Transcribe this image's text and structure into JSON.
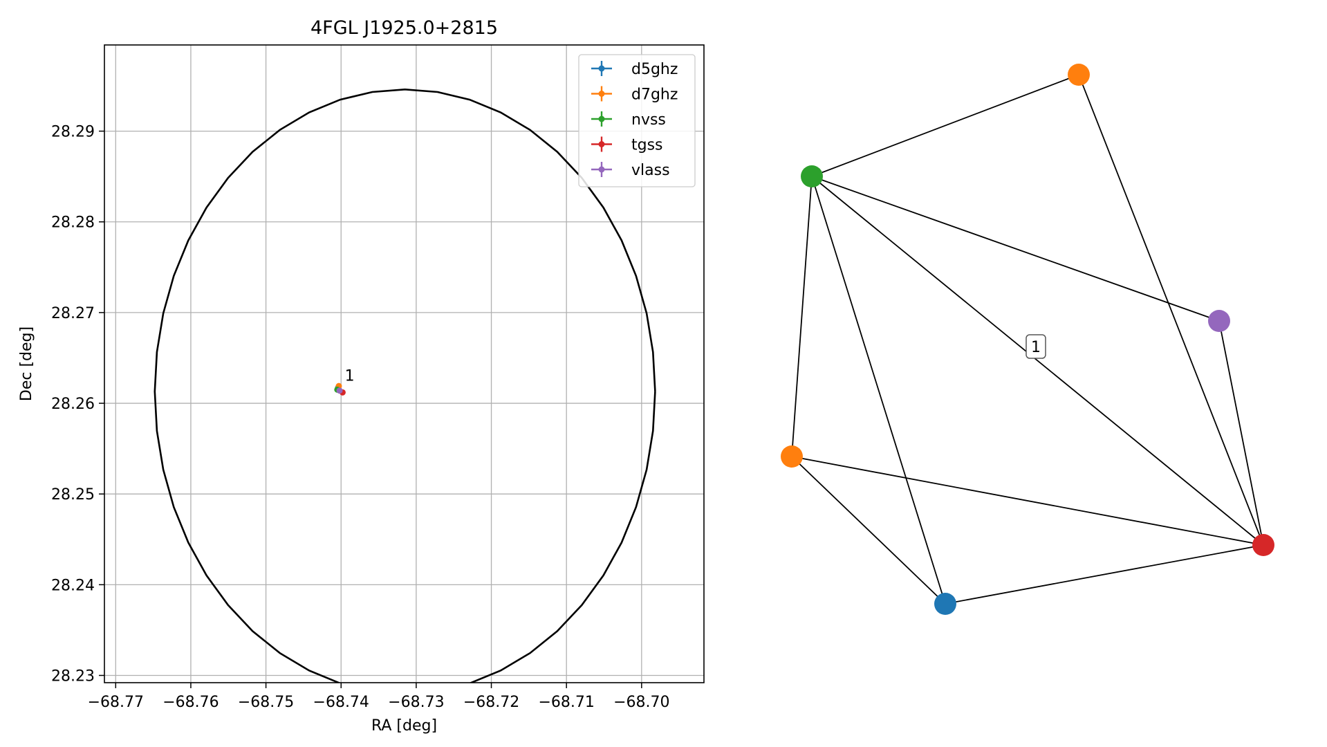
{
  "chart_data": [
    {
      "type": "scatter",
      "title": "4FGL J1925.0+2815",
      "xlabel": "RA [deg]",
      "ylabel": "Dec [deg]",
      "xlim": [
        -68.7715,
        -68.6917
      ],
      "ylim": [
        28.2292,
        28.2995
      ],
      "xticks": [
        -68.77,
        -68.76,
        -68.75,
        -68.74,
        -68.73,
        -68.72,
        -68.71,
        -68.7
      ],
      "xtick_labels": [
        "−68.77",
        "−68.76",
        "−68.75",
        "−68.74",
        "−68.73",
        "−68.72",
        "−68.71",
        "−68.70"
      ],
      "yticks": [
        28.23,
        28.24,
        28.25,
        28.26,
        28.27,
        28.28,
        28.29
      ],
      "ytick_labels": [
        "28.23",
        "28.24",
        "28.25",
        "28.26",
        "28.27",
        "28.28",
        "28.29"
      ],
      "grid": true,
      "legend_position": "top-right",
      "circle": {
        "center_ra": -68.7315,
        "center_dec": 28.2613,
        "radius_deg": 0.0333,
        "color": "#000000"
      },
      "series": [
        {
          "name": "d5ghz",
          "color": "#1f77b4",
          "ra": -68.7404,
          "dec": 28.2617
        },
        {
          "name": "d7ghz",
          "color": "#ff7f0e",
          "ra": -68.7403,
          "dec": 28.2619
        },
        {
          "name": "nvss",
          "color": "#2ca02c",
          "ra": -68.7405,
          "dec": 28.2615
        },
        {
          "name": "tgss",
          "color": "#d62728",
          "ra": -68.7398,
          "dec": 28.2612
        },
        {
          "name": "vlass",
          "color": "#9467bd",
          "ra": -68.7402,
          "dec": 28.2614
        }
      ],
      "annotations": [
        {
          "text": "1",
          "ra": -68.7395,
          "dec": 28.2625
        }
      ]
    },
    {
      "type": "network",
      "label": "1",
      "nodes": [
        {
          "id": "orange-top",
          "color": "#ff7f0e"
        },
        {
          "id": "green",
          "color": "#2ca02c"
        },
        {
          "id": "purple",
          "color": "#9467bd"
        },
        {
          "id": "orange-left",
          "color": "#ff7f0e"
        },
        {
          "id": "red",
          "color": "#d62728"
        },
        {
          "id": "blue",
          "color": "#1f77b4"
        }
      ],
      "edges": [
        [
          "green",
          "orange-top"
        ],
        [
          "orange-top",
          "red"
        ],
        [
          "green",
          "purple"
        ],
        [
          "green",
          "red"
        ],
        [
          "green",
          "orange-left"
        ],
        [
          "green",
          "blue"
        ],
        [
          "purple",
          "red"
        ],
        [
          "orange-left",
          "red"
        ],
        [
          "orange-left",
          "blue"
        ],
        [
          "blue",
          "red"
        ]
      ]
    }
  ]
}
